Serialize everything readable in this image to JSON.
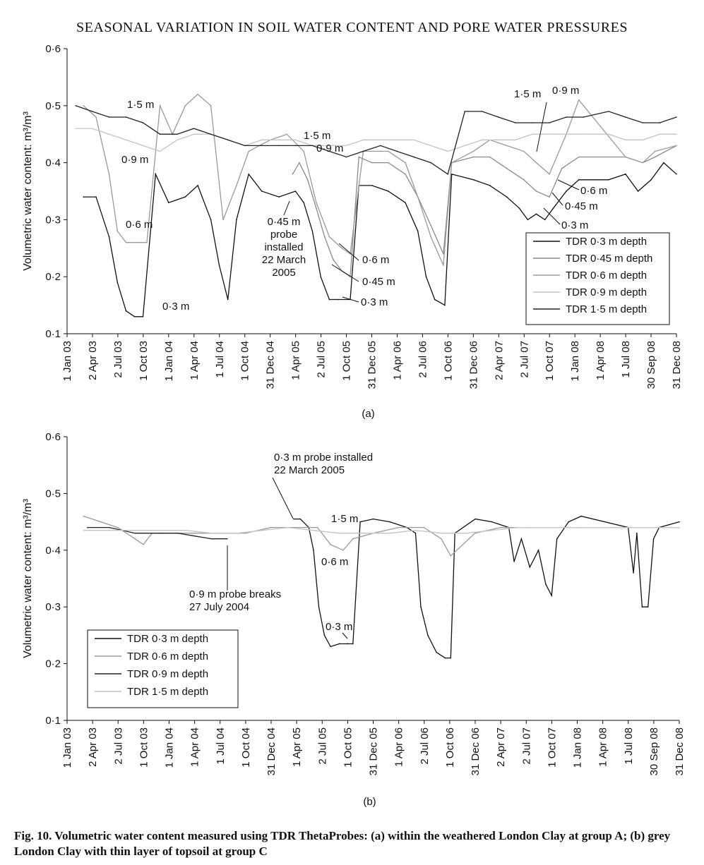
{
  "header": "SEASONAL VARIATION IN SOIL WATER CONTENT AND PORE WATER PRESSURES",
  "caption": "Fig. 10. Volumetric water content measured using TDR ThetaProbes: (a) within the weathered London Clay at group A; (b) grey London Clay with thin layer of topsoil at group C",
  "chart_data": [
    {
      "type": "line",
      "panel_label": "(a)",
      "ylabel": "Volumetric water content: m³/m³",
      "ylim": [
        0.1,
        0.6
      ],
      "yticks": [
        "0·1",
        "0·2",
        "0·3",
        "0·4",
        "0·5",
        "0·6"
      ],
      "xtick_labels": [
        "1 Jan 03",
        "2 Apr 03",
        "2 Jul 03",
        "1 Oct 03",
        "1 Jan 04",
        "1 Apr 04",
        "1 Jul 04",
        "1 Oct 04",
        "31 Dec 04",
        "1 Apr 05",
        "2 Jul 05",
        "1 Oct 05",
        "31 Dec 05",
        "1 Apr 06",
        "2 Jul 06",
        "1 Oct 06",
        "31 Dec 06",
        "2 Apr 07",
        "2 Jul 07",
        "1 Oct 07",
        "1 Jan 08",
        "1 Apr 08",
        "1 Jul 08",
        "30 Sep 08",
        "31 Dec 08"
      ],
      "legend": {
        "position": "bottom-right",
        "entries": [
          "TDR 0·3 m depth",
          "TDR 0·45 m depth",
          "TDR 0·6 m depth",
          "TDR 0·9 m depth",
          "TDR 1·5 m depth"
        ]
      },
      "colors": {
        "d03": "#111111",
        "d045": "#8a8a8a",
        "d06": "#999999",
        "d09": "#c4c4c4",
        "d15": "#222222"
      },
      "series": [
        {
          "name": "TDR 0·3 m depth",
          "key": "d03",
          "x": [
            "2003-03-01",
            "2003-04-15",
            "2003-06-01",
            "2003-07-01",
            "2003-08-01",
            "2003-09-01",
            "2003-10-01",
            "2003-11-15",
            "2004-01-01",
            "2004-03-01",
            "2004-04-15",
            "2004-06-01",
            "2004-07-01",
            "2004-08-01",
            "2004-09-01",
            "2004-10-15",
            "2004-12-01",
            "2005-02-01",
            "2005-04-01",
            "2005-05-01",
            "2005-06-01",
            "2005-07-01",
            "2005-08-01",
            "2005-09-01",
            "2005-10-15",
            "2005-11-15",
            "2006-01-01",
            "2006-03-01",
            "2006-05-01",
            "2006-06-15",
            "2006-07-15",
            "2006-08-15",
            "2006-09-20",
            "2006-10-15",
            "2007-01-01",
            "2007-03-01",
            "2007-05-01",
            "2007-06-15",
            "2007-07-15",
            "2007-08-15",
            "2007-09-15",
            "2007-10-15",
            "2007-12-01",
            "2008-01-15",
            "2008-05-01",
            "2008-07-01",
            "2008-08-15",
            "2008-10-01",
            "2008-11-15",
            "2008-12-31"
          ],
          "y": [
            0.34,
            0.34,
            0.27,
            0.19,
            0.14,
            0.13,
            0.13,
            0.38,
            0.33,
            0.34,
            0.36,
            0.3,
            0.22,
            0.16,
            0.3,
            0.38,
            0.35,
            0.34,
            0.35,
            0.33,
            0.28,
            0.2,
            0.16,
            0.16,
            0.16,
            0.36,
            0.36,
            0.35,
            0.33,
            0.28,
            0.2,
            0.16,
            0.15,
            0.38,
            0.37,
            0.36,
            0.34,
            0.32,
            0.3,
            0.31,
            0.3,
            0.32,
            0.35,
            0.37,
            0.37,
            0.38,
            0.35,
            0.37,
            0.4,
            0.38
          ]
        },
        {
          "name": "TDR 0·45 m depth",
          "key": "d045",
          "x": [
            "2005-03-22",
            "2005-04-15",
            "2005-05-15",
            "2005-06-15",
            "2005-07-15",
            "2005-08-15",
            "2005-09-15",
            "2005-10-15",
            "2005-11-15",
            "2006-01-01",
            "2006-03-01",
            "2006-05-01",
            "2006-06-15",
            "2006-08-01",
            "2006-09-15",
            "2006-10-15",
            "2007-01-01",
            "2007-03-01",
            "2007-05-01",
            "2007-07-01",
            "2007-08-15",
            "2007-10-01",
            "2007-11-15",
            "2008-01-15",
            "2008-07-01",
            "2008-09-01",
            "2008-10-15",
            "2008-12-31"
          ],
          "y": [
            0.38,
            0.4,
            0.37,
            0.32,
            0.27,
            0.23,
            0.21,
            0.2,
            0.41,
            0.4,
            0.4,
            0.38,
            0.34,
            0.29,
            0.24,
            0.4,
            0.41,
            0.41,
            0.39,
            0.37,
            0.35,
            0.34,
            0.39,
            0.41,
            0.41,
            0.4,
            0.41,
            0.43
          ]
        },
        {
          "name": "TDR 0·6 m depth",
          "key": "d06",
          "x": [
            "2003-03-01",
            "2003-04-15",
            "2003-06-01",
            "2003-07-01",
            "2003-08-01",
            "2003-09-15",
            "2003-10-15",
            "2003-12-01",
            "2004-01-15",
            "2004-03-01",
            "2004-04-15",
            "2004-06-01",
            "2004-07-15",
            "2004-09-01",
            "2004-10-15",
            "2005-01-01",
            "2005-03-01",
            "2005-05-01",
            "2005-06-15",
            "2005-08-01",
            "2005-09-15",
            "2005-10-15",
            "2005-12-01",
            "2006-03-01",
            "2006-05-01",
            "2006-06-15",
            "2006-08-01",
            "2006-09-15",
            "2006-10-15",
            "2007-01-01",
            "2007-03-01",
            "2007-05-01",
            "2007-07-01",
            "2007-08-15",
            "2007-10-01",
            "2007-12-01",
            "2008-01-15",
            "2008-07-01",
            "2008-09-01",
            "2008-10-15",
            "2008-12-31"
          ],
          "y": [
            0.5,
            0.48,
            0.38,
            0.28,
            0.26,
            0.26,
            0.26,
            0.5,
            0.45,
            0.5,
            0.52,
            0.5,
            0.3,
            0.36,
            0.42,
            0.44,
            0.45,
            0.42,
            0.33,
            0.27,
            0.25,
            0.24,
            0.42,
            0.42,
            0.4,
            0.34,
            0.27,
            0.22,
            0.4,
            0.42,
            0.44,
            0.43,
            0.42,
            0.4,
            0.38,
            0.45,
            0.51,
            0.41,
            0.4,
            0.42,
            0.43
          ]
        },
        {
          "name": "TDR 0·9 m depth",
          "key": "d09",
          "x": [
            "2003-02-01",
            "2003-04-01",
            "2003-06-01",
            "2003-08-01",
            "2003-10-01",
            "2003-12-01",
            "2004-02-01",
            "2004-04-01",
            "2004-06-01",
            "2004-08-01",
            "2004-10-01",
            "2004-12-01",
            "2005-02-01",
            "2005-04-01",
            "2005-06-01",
            "2005-08-01",
            "2005-10-01",
            "2005-12-01",
            "2006-02-01",
            "2006-04-01",
            "2006-06-01",
            "2006-08-01",
            "2006-10-01",
            "2006-12-01",
            "2007-02-01",
            "2007-04-01",
            "2007-06-01",
            "2007-08-01",
            "2007-10-01",
            "2007-12-01",
            "2008-02-01",
            "2008-05-01",
            "2008-07-01",
            "2008-09-01",
            "2008-11-01",
            "2008-12-31"
          ],
          "y": [
            0.46,
            0.46,
            0.45,
            0.44,
            0.43,
            0.42,
            0.44,
            0.45,
            0.45,
            0.44,
            0.43,
            0.44,
            0.44,
            0.44,
            0.43,
            0.43,
            0.43,
            0.44,
            0.44,
            0.44,
            0.44,
            0.43,
            0.42,
            0.43,
            0.44,
            0.44,
            0.44,
            0.45,
            0.45,
            0.45,
            0.45,
            0.45,
            0.44,
            0.44,
            0.45,
            0.45
          ]
        },
        {
          "name": "TDR 1·5 m depth",
          "key": "d15",
          "x": [
            "2003-02-01",
            "2003-04-01",
            "2003-06-01",
            "2003-08-01",
            "2003-10-01",
            "2003-12-01",
            "2004-02-01",
            "2004-04-01",
            "2004-06-01",
            "2004-08-01",
            "2004-10-01",
            "2004-12-01",
            "2005-02-01",
            "2005-04-01",
            "2005-06-01",
            "2005-08-01",
            "2005-10-01",
            "2005-12-01",
            "2006-02-01",
            "2006-04-01",
            "2006-06-01",
            "2006-08-01",
            "2006-10-01",
            "2006-12-01",
            "2007-02-01",
            "2007-04-01",
            "2007-06-01",
            "2007-08-01",
            "2007-10-01",
            "2007-12-01",
            "2008-02-01",
            "2008-05-01",
            "2008-07-01",
            "2008-09-01",
            "2008-11-01",
            "2008-12-31"
          ],
          "y": [
            0.5,
            0.49,
            0.48,
            0.48,
            0.47,
            0.45,
            0.45,
            0.46,
            0.45,
            0.44,
            0.43,
            0.43,
            0.43,
            0.43,
            0.43,
            0.42,
            0.41,
            0.42,
            0.43,
            0.42,
            0.41,
            0.4,
            0.38,
            0.49,
            0.49,
            0.48,
            0.47,
            0.47,
            0.47,
            0.48,
            0.48,
            0.49,
            0.48,
            0.47,
            0.47,
            0.48
          ]
        }
      ],
      "annotations": [
        "1·5 m",
        "0·9 m",
        "0·6 m",
        "0·3 m",
        "1·5 m",
        "0·9 m",
        "0·45 m probe installed 22 March 2005",
        "0·6 m",
        "0·45 m",
        "0·3 m",
        "1·5 m",
        "0·9 m",
        "0·6 m",
        "0·45 m",
        "0·3 m"
      ]
    },
    {
      "type": "line",
      "panel_label": "(b)",
      "ylabel": "Volumetric water content: m³/m³",
      "ylim": [
        0.1,
        0.6
      ],
      "yticks": [
        "0·1",
        "0·2",
        "0·3",
        "0·4",
        "0·5",
        "0·6"
      ],
      "xtick_labels": [
        "1 Jan 03",
        "2 Apr 03",
        "2 Jul 03",
        "1 Oct 03",
        "1 Jan 04",
        "1 Apr 04",
        "1 Jul 04",
        "1 Oct 04",
        "31 Dec 04",
        "1 Apr 05",
        "2 Jul 05",
        "1 Oct 05",
        "31 Dec 05",
        "1 Apr 06",
        "2 Jul 06",
        "1 Oct 06",
        "31 Dec 06",
        "2 Apr 07",
        "2 Jul 07",
        "1 Oct 07",
        "1 Jan 08",
        "1 Apr 08",
        "1 Jul 08",
        "30 Sep 08",
        "31 Dec 08"
      ],
      "legend": {
        "position": "bottom-left",
        "entries": [
          "TDR 0·3 m depth",
          "TDR 0·6 m depth",
          "TDR 0·9 m depth",
          "TDR 1·5 m depth"
        ]
      },
      "colors": {
        "d03": "#111111",
        "d06": "#999999",
        "d09": "#222222",
        "d15": "#c4c4c4"
      },
      "series": [
        {
          "name": "TDR 0·3 m depth",
          "key": "d03",
          "x": [
            "2005-03-22",
            "2005-04-15",
            "2005-05-15",
            "2005-06-01",
            "2005-06-20",
            "2005-07-10",
            "2005-08-01",
            "2005-09-01",
            "2005-10-01",
            "2005-10-20",
            "2005-11-15",
            "2006-01-01",
            "2006-03-01",
            "2006-05-01",
            "2006-06-01",
            "2006-06-20",
            "2006-07-15",
            "2006-08-15",
            "2006-09-15",
            "2006-10-05",
            "2006-10-20",
            "2007-01-01",
            "2007-03-01",
            "2007-05-01",
            "2007-05-20",
            "2007-06-15",
            "2007-07-15",
            "2007-08-15",
            "2007-09-10",
            "2007-10-01",
            "2007-10-20",
            "2007-12-01",
            "2008-01-15",
            "2008-07-01",
            "2008-07-20",
            "2008-08-01",
            "2008-08-20",
            "2008-09-10",
            "2008-09-30",
            "2008-10-20",
            "2008-12-31"
          ],
          "y": [
            0.455,
            0.455,
            0.44,
            0.4,
            0.3,
            0.25,
            0.23,
            0.235,
            0.235,
            0.235,
            0.45,
            0.455,
            0.45,
            0.44,
            0.43,
            0.3,
            0.25,
            0.22,
            0.21,
            0.21,
            0.43,
            0.455,
            0.45,
            0.44,
            0.38,
            0.42,
            0.37,
            0.4,
            0.34,
            0.32,
            0.42,
            0.45,
            0.46,
            0.44,
            0.36,
            0.43,
            0.3,
            0.3,
            0.42,
            0.44,
            0.45
          ]
        },
        {
          "name": "TDR 0·6 m depth",
          "key": "d06",
          "x": [
            "2003-03-01",
            "2003-05-01",
            "2003-07-01",
            "2003-09-01",
            "2003-10-01",
            "2003-11-01",
            "2004-01-01",
            "2004-04-01",
            "2004-07-01",
            "2004-10-01",
            "2004-12-31",
            "2005-04-01",
            "2005-06-15",
            "2005-08-01",
            "2005-09-15",
            "2005-10-20",
            "2005-12-31",
            "2006-04-01",
            "2006-07-01",
            "2006-09-01",
            "2006-10-05",
            "2006-12-31",
            "2007-04-01",
            "2007-07-01",
            "2007-10-01",
            "2008-01-01",
            "2008-07-01",
            "2008-10-01",
            "2008-12-31"
          ],
          "y": [
            0.46,
            0.45,
            0.44,
            0.42,
            0.41,
            0.43,
            0.43,
            0.43,
            0.43,
            0.43,
            0.44,
            0.44,
            0.44,
            0.41,
            0.4,
            0.42,
            0.43,
            0.44,
            0.44,
            0.42,
            0.39,
            0.43,
            0.44,
            0.44,
            0.44,
            0.44,
            0.44,
            0.44,
            0.44
          ]
        },
        {
          "name": "TDR 0·9 m depth",
          "key": "d09",
          "x": [
            "2003-03-15",
            "2003-06-01",
            "2003-09-01",
            "2003-12-01",
            "2004-02-01",
            "2004-04-01",
            "2004-06-01",
            "2004-07-27"
          ],
          "y": [
            0.44,
            0.44,
            0.43,
            0.43,
            0.43,
            0.425,
            0.42,
            0.42
          ]
        },
        {
          "name": "TDR 1·5 m depth",
          "key": "d15",
          "x": [
            "2003-03-01",
            "2003-06-01",
            "2003-09-01",
            "2003-12-01",
            "2004-03-01",
            "2004-06-01",
            "2004-09-01",
            "2004-12-01",
            "2005-03-01",
            "2005-06-01",
            "2005-09-01",
            "2005-12-01",
            "2006-03-01",
            "2006-06-01",
            "2006-09-01",
            "2006-12-01",
            "2007-03-01",
            "2007-06-01",
            "2007-09-01",
            "2007-12-01",
            "2008-03-01",
            "2008-06-01",
            "2008-09-01",
            "2008-12-31"
          ],
          "y": [
            0.435,
            0.435,
            0.435,
            0.435,
            0.435,
            0.43,
            0.43,
            0.435,
            0.44,
            0.435,
            0.43,
            0.43,
            0.43,
            0.435,
            0.43,
            0.43,
            0.435,
            0.44,
            0.44,
            0.44,
            0.44,
            0.44,
            0.44,
            0.44
          ]
        }
      ],
      "annotations": [
        "0·3 m probe installed",
        "22 March 2005",
        "1·5 m",
        "0·6 m",
        "0·9 m probe breaks",
        "27 July 2004",
        "0·3 m"
      ]
    }
  ]
}
